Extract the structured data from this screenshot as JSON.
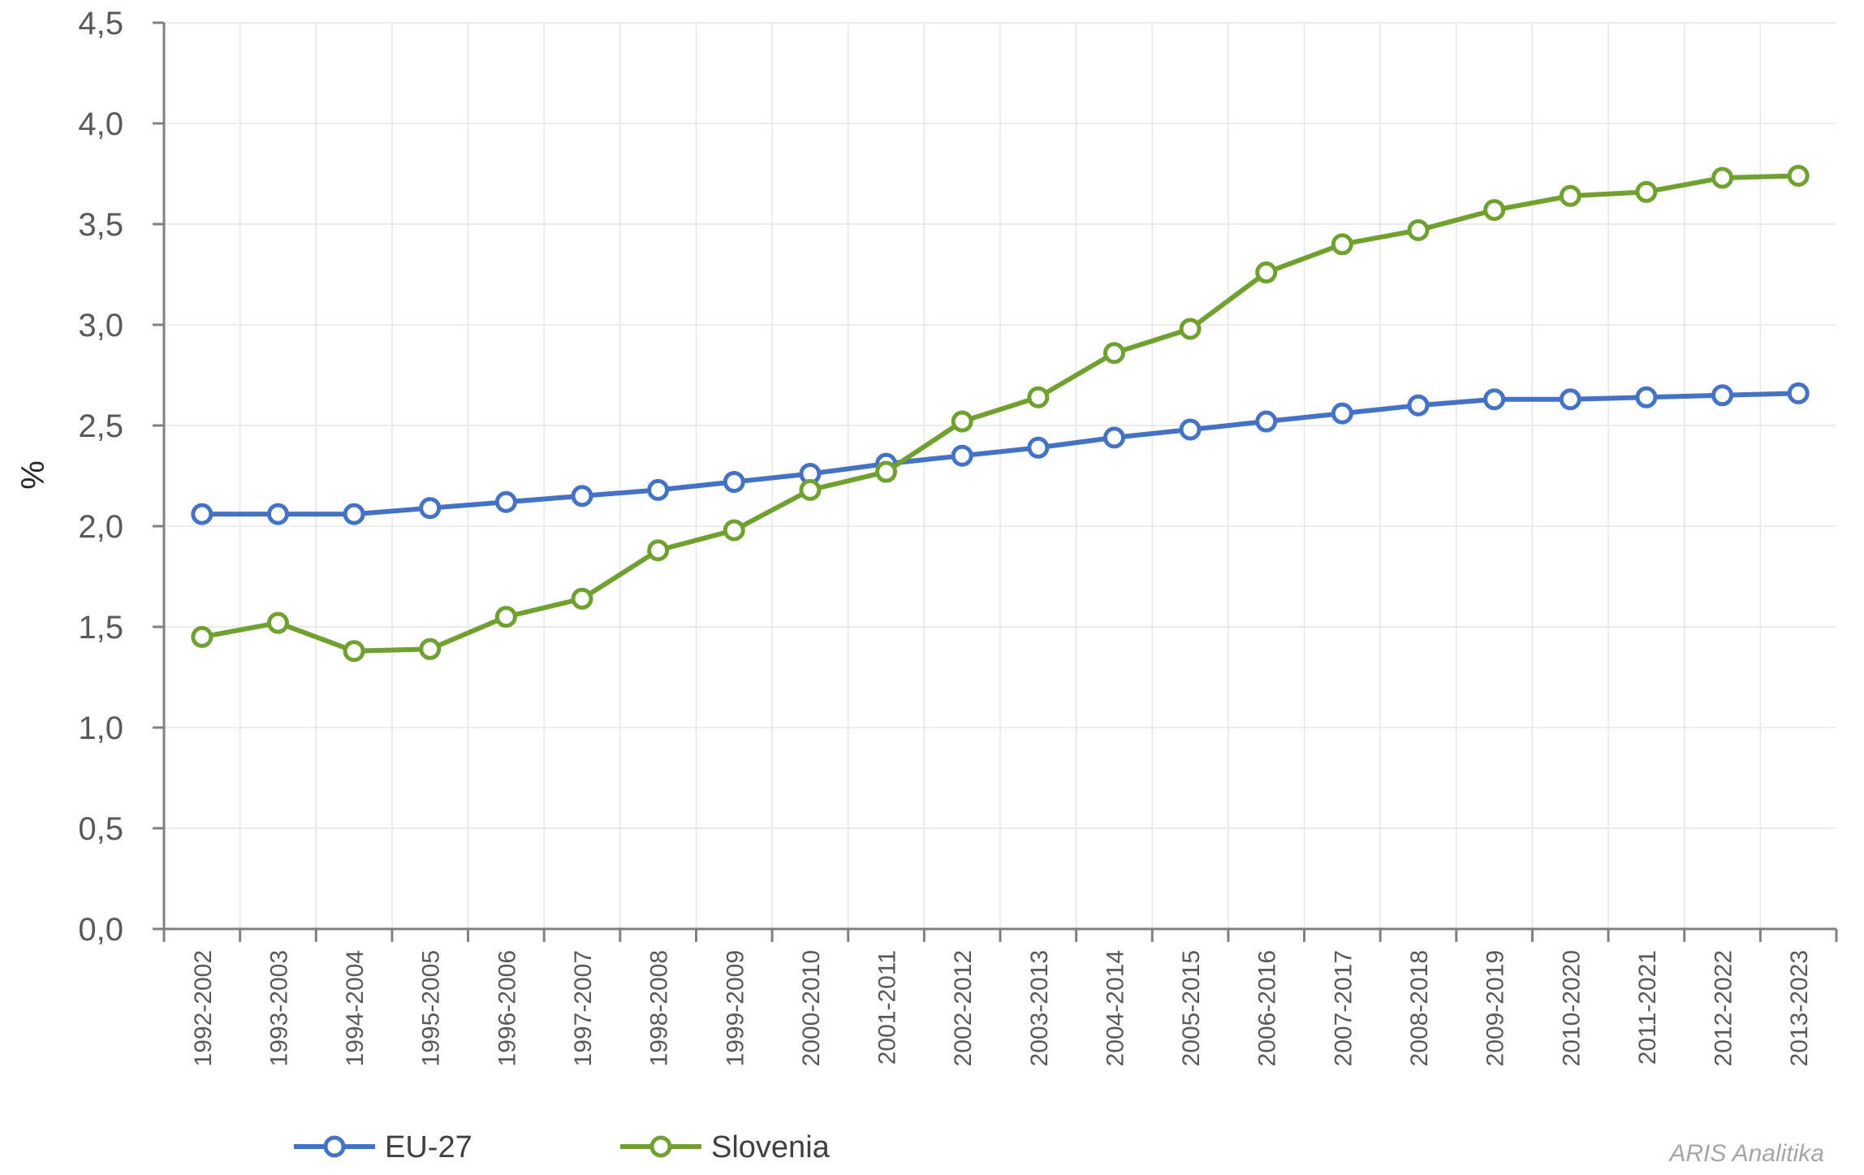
{
  "chart_data": {
    "type": "line",
    "title": "",
    "xlabel": "",
    "ylabel": "%",
    "ylim": [
      0,
      4.5
    ],
    "yticks": [
      "0,0",
      "0,5",
      "1,0",
      "1,5",
      "2,0",
      "2,5",
      "3,0",
      "3,5",
      "4,0",
      "4,5"
    ],
    "grid": true,
    "legend_position": "bottom-left",
    "categories": [
      "1992-2002",
      "1993-2003",
      "1994-2004",
      "1995-2005",
      "1996-2006",
      "1997-2007",
      "1998-2008",
      "1999-2009",
      "2000-2010",
      "2001-2011",
      "2002-2012",
      "2003-2013",
      "2004-2014",
      "2005-2015",
      "2006-2016",
      "2007-2017",
      "2008-2018",
      "2009-2019",
      "2010-2020",
      "2011-2021",
      "2012-2022",
      "2013-2023"
    ],
    "series": [
      {
        "name": "EU-27",
        "color": "#4472c4",
        "values": [
          2.06,
          2.06,
          2.06,
          2.09,
          2.12,
          2.15,
          2.18,
          2.22,
          2.26,
          2.31,
          2.35,
          2.39,
          2.44,
          2.48,
          2.52,
          2.56,
          2.6,
          2.63,
          2.63,
          2.64,
          2.65,
          2.66
        ]
      },
      {
        "name": "Slovenia",
        "color": "#70a030",
        "values": [
          1.45,
          1.52,
          1.38,
          1.39,
          1.55,
          1.64,
          1.88,
          1.98,
          2.18,
          2.27,
          2.52,
          2.64,
          2.86,
          2.98,
          3.26,
          3.4,
          3.47,
          3.57,
          3.64,
          3.66,
          3.73,
          3.74
        ]
      }
    ],
    "source": "ARIS Analitika"
  }
}
